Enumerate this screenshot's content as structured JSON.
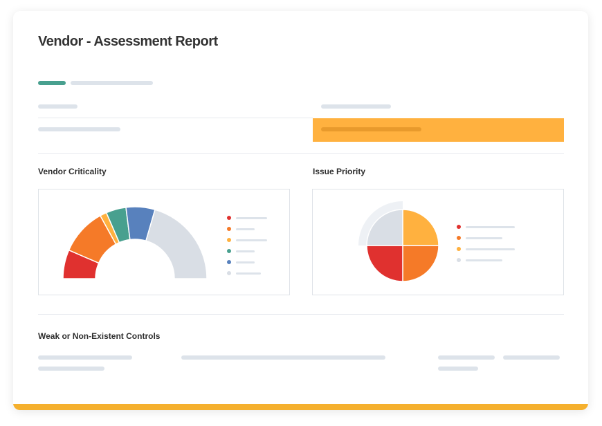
{
  "report": {
    "title": "Vendor - Assessment Report"
  },
  "sections": {
    "vendor_criticality": "Vendor Criticality",
    "issue_priority": "Issue Priority",
    "weak_controls": "Weak or Non-Existent Controls"
  },
  "colors": {
    "accent": "#f5b02e",
    "highlight": "#ffb13f",
    "teal": "#48a08f",
    "red": "#e0312f",
    "orange": "#f57a28",
    "amber": "#ffb13f",
    "green": "#48a08f",
    "blue": "#5881bd",
    "grey": "#d9dee5",
    "placeholder": "#dde3ea"
  },
  "chart_data": [
    {
      "type": "pie",
      "subtype": "half-donut",
      "slices": [
        {
          "color": "#e0312f",
          "value": 13
        },
        {
          "color": "#f57a28",
          "value": 21
        },
        {
          "color": "#ffb13f",
          "value": 3
        },
        {
          "color": "#48a08f",
          "value": 9
        },
        {
          "color": "#5881bd",
          "value": 13
        },
        {
          "color": "#d9dee5",
          "value": 41
        }
      ],
      "legend": "right"
    },
    {
      "type": "pie",
      "slices": [
        {
          "color": "#ffb13f",
          "value": 25
        },
        {
          "color": "#f57a28",
          "value": 25
        },
        {
          "color": "#e0312f",
          "value": 25
        },
        {
          "color": "#d9dee5",
          "value": 25
        }
      ],
      "legend": "right"
    }
  ]
}
